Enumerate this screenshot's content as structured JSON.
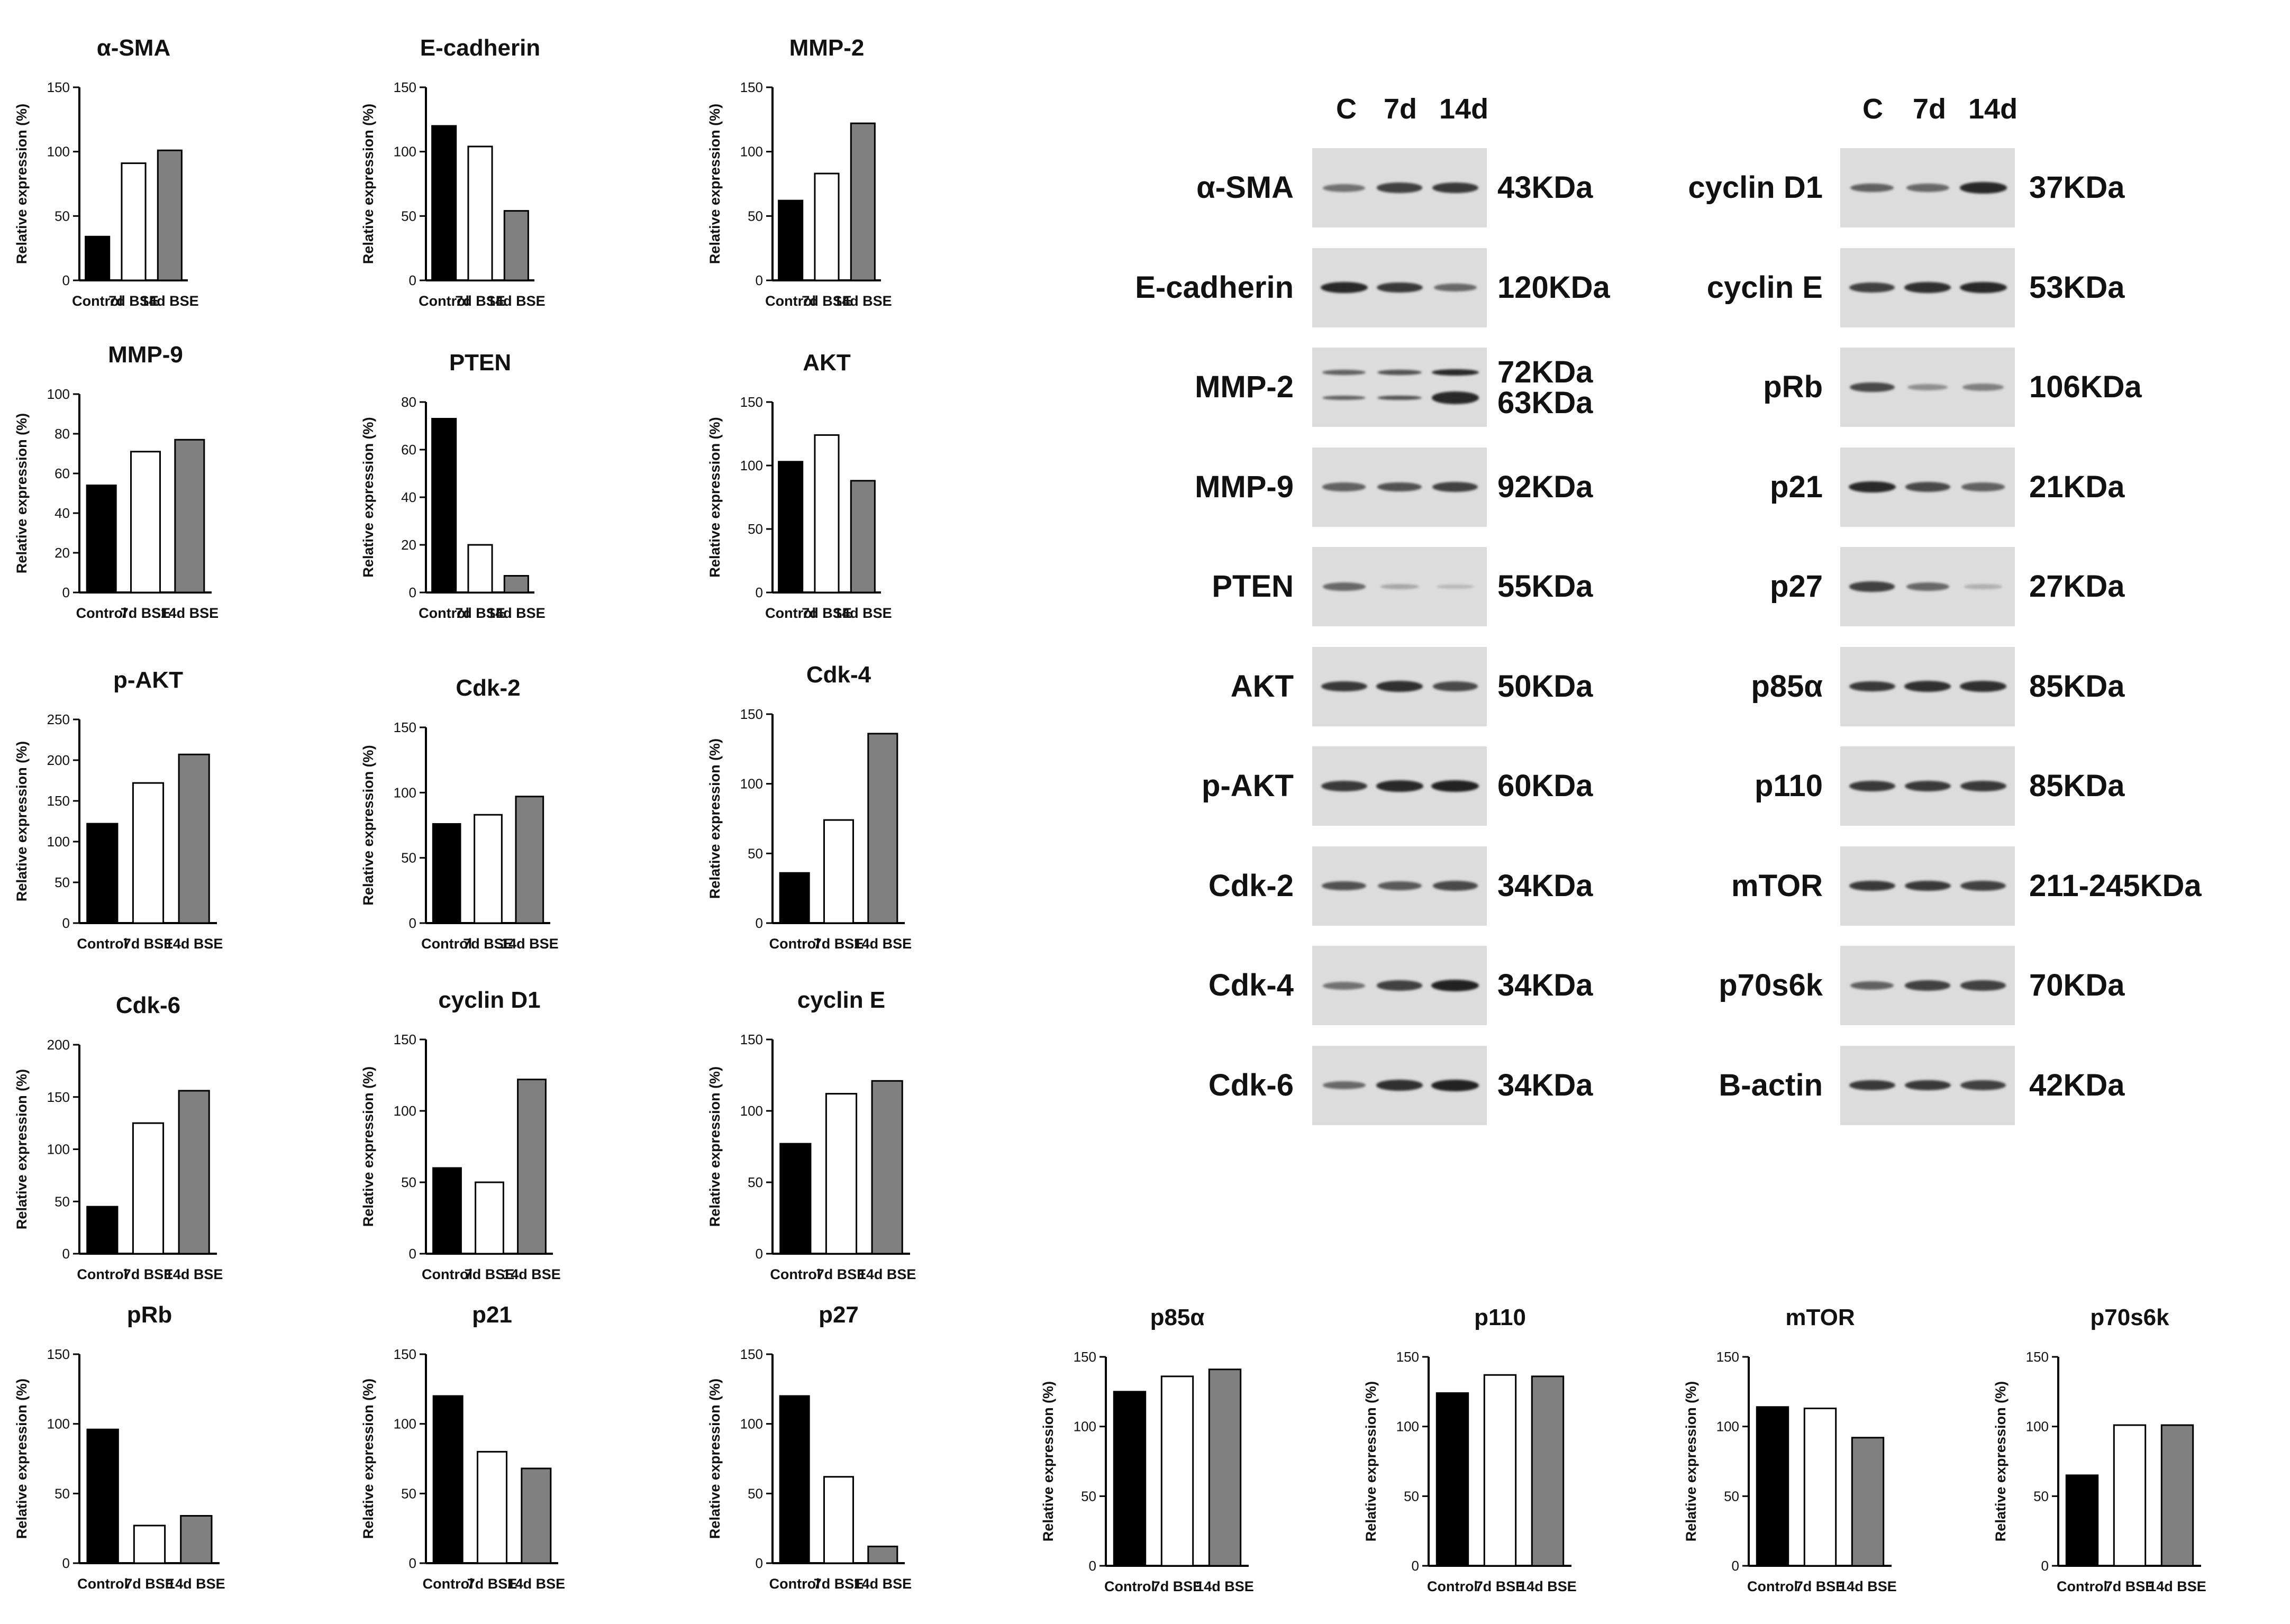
{
  "colors": {
    "control": "#000000",
    "d7": "#ffffff",
    "d14": "#808080",
    "axis": "#000000"
  },
  "common": {
    "ylabel": "Relative expression (%)",
    "categories": [
      "Control",
      "7d BSE",
      "14d BSE"
    ]
  },
  "chart_data": [
    {
      "type": "bar",
      "title": "α-SMA",
      "categories": [
        "Control",
        "7d BSE",
        "14d BSE"
      ],
      "values": [
        34,
        91,
        101
      ],
      "ylabel": "Relative expression (%)",
      "ylim": [
        0,
        150
      ],
      "ticks": [
        "0",
        "50",
        "100",
        "150"
      ]
    },
    {
      "type": "bar",
      "title": "E-cadherin",
      "categories": [
        "Control",
        "7d BSE",
        "14d BSE"
      ],
      "values": [
        120,
        104,
        54
      ],
      "ylabel": "Relative expression (%)",
      "ylim": [
        0,
        150
      ],
      "ticks": [
        "0",
        "50",
        "100",
        "150"
      ]
    },
    {
      "type": "bar",
      "title": "MMP-2",
      "categories": [
        "Control",
        "7d BSE",
        "14d BSE"
      ],
      "values": [
        62,
        83,
        122
      ],
      "ylabel": "Relative expression (%)",
      "ylim": [
        0,
        150
      ],
      "ticks": [
        "0",
        "50",
        "100",
        "150"
      ]
    },
    {
      "type": "bar",
      "title": "MMP-9",
      "categories": [
        "Control",
        "7d BSE",
        "14d BSE"
      ],
      "values": [
        54,
        71,
        77
      ],
      "ylabel": "Relative expression (%)",
      "ylim": [
        0,
        100
      ],
      "ticks": [
        "0",
        "20",
        "40",
        "60",
        "80",
        "100"
      ]
    },
    {
      "type": "bar",
      "title": "PTEN",
      "categories": [
        "Control",
        "7d BSE",
        "14d BSE"
      ],
      "values": [
        73,
        20,
        7
      ],
      "ylabel": "Relative expression (%)",
      "ylim": [
        0,
        80
      ],
      "ticks": [
        "0",
        "20",
        "40",
        "60",
        "80"
      ]
    },
    {
      "type": "bar",
      "title": "AKT",
      "categories": [
        "Control",
        "7d BSE",
        "14d BSE"
      ],
      "values": [
        103,
        124,
        88
      ],
      "ylabel": "Relative expression (%)",
      "ylim": [
        0,
        150
      ],
      "ticks": [
        "0",
        "50",
        "100",
        "150"
      ]
    },
    {
      "type": "bar",
      "title": "p-AKT",
      "categories": [
        "Control",
        "7d BSE",
        "14d BSE"
      ],
      "values": [
        122,
        172,
        207
      ],
      "ylabel": "Relative expression (%)",
      "ylim": [
        0,
        250
      ],
      "ticks": [
        "0",
        "50",
        "100",
        "150",
        "200",
        "250"
      ]
    },
    {
      "type": "bar",
      "title": "Cdk-2",
      "categories": [
        "Control",
        "7d BSE",
        "14d BSE"
      ],
      "values": [
        76,
        83,
        97
      ],
      "ylabel": "Relative expression (%)",
      "ylim": [
        0,
        150
      ],
      "ticks": [
        "0",
        "50",
        "100",
        "150"
      ]
    },
    {
      "type": "bar",
      "title": "Cdk-4",
      "categories": [
        "Control",
        "7d BSE",
        "14d BSE"
      ],
      "values": [
        36,
        74,
        136
      ],
      "ylabel": "Relative expression (%)",
      "ylim": [
        0,
        150
      ],
      "ticks": [
        "0",
        "50",
        "100",
        "150"
      ]
    },
    {
      "type": "bar",
      "title": "Cdk-6",
      "categories": [
        "Control",
        "7d BSE",
        "14d BSE"
      ],
      "values": [
        45,
        125,
        156
      ],
      "ylabel": "Relative expression (%)",
      "ylim": [
        0,
        200
      ],
      "ticks": [
        "0",
        "50",
        "100",
        "150",
        "200"
      ]
    },
    {
      "type": "bar",
      "title": "cyclin D1",
      "categories": [
        "Control",
        "7d BSE",
        "14d BSE"
      ],
      "values": [
        60,
        50,
        122
      ],
      "ylabel": "Relative expression (%)",
      "ylim": [
        0,
        150
      ],
      "ticks": [
        "0",
        "50",
        "100",
        "150"
      ]
    },
    {
      "type": "bar",
      "title": "cyclin E",
      "categories": [
        "Control",
        "7d BSE",
        "14d BSE"
      ],
      "values": [
        77,
        112,
        121
      ],
      "ylabel": "Relative expression (%)",
      "ylim": [
        0,
        150
      ],
      "ticks": [
        "0",
        "50",
        "100",
        "150"
      ]
    },
    {
      "type": "bar",
      "title": "pRb",
      "categories": [
        "Control",
        "7d BSE",
        "14d BSE"
      ],
      "values": [
        96,
        27,
        34
      ],
      "ylabel": "Relative expression (%)",
      "ylim": [
        0,
        150
      ],
      "ticks": [
        "0",
        "50",
        "100",
        "150"
      ]
    },
    {
      "type": "bar",
      "title": "p21",
      "categories": [
        "Control",
        "7d BSE",
        "14d BSE"
      ],
      "values": [
        120,
        80,
        68
      ],
      "ylabel": "Relative expression (%)",
      "ylim": [
        0,
        150
      ],
      "ticks": [
        "0",
        "50",
        "100",
        "150"
      ]
    },
    {
      "type": "bar",
      "title": "p27",
      "categories": [
        "Control",
        "7d BSE",
        "14d BSE"
      ],
      "values": [
        120,
        62,
        12
      ],
      "ylabel": "Relative expression (%)",
      "ylim": [
        0,
        150
      ],
      "ticks": [
        "0",
        "50",
        "100",
        "150"
      ]
    },
    {
      "type": "bar",
      "title": "p85α",
      "categories": [
        "Control",
        "7d BSE",
        "14d BSE"
      ],
      "values": [
        125,
        136,
        141
      ],
      "ylabel": "Relative expression (%)",
      "ylim": [
        0,
        150
      ],
      "ticks": [
        "0",
        "50",
        "100",
        "150"
      ]
    },
    {
      "type": "bar",
      "title": "p110",
      "categories": [
        "Control",
        "7d BSE",
        "14d BSE"
      ],
      "values": [
        124,
        137,
        136
      ],
      "ylabel": "Relative expression (%)",
      "ylim": [
        0,
        150
      ],
      "ticks": [
        "0",
        "50",
        "100",
        "150"
      ]
    },
    {
      "type": "bar",
      "title": "mTOR",
      "categories": [
        "Control",
        "7d BSE",
        "14d BSE"
      ],
      "values": [
        114,
        113,
        92
      ],
      "ylabel": "Relative expression (%)",
      "ylim": [
        0,
        150
      ],
      "ticks": [
        "0",
        "50",
        "100",
        "150"
      ]
    },
    {
      "type": "bar",
      "title": "p70s6k",
      "categories": [
        "Control",
        "7d BSE",
        "14d BSE"
      ],
      "values": [
        65,
        101,
        101
      ],
      "ylabel": "Relative expression (%)",
      "ylim": [
        0,
        150
      ],
      "ticks": [
        "0",
        "50",
        "100",
        "150"
      ]
    }
  ],
  "blots": {
    "lanes": [
      "C",
      "7d",
      "14d"
    ],
    "left": [
      {
        "label": "α-SMA",
        "mw": [
          "43KDa"
        ],
        "intensity": [
          0.5,
          0.8,
          0.85
        ]
      },
      {
        "label": "E-cadherin",
        "mw": [
          "120KDa"
        ],
        "intensity": [
          0.95,
          0.85,
          0.55
        ]
      },
      {
        "label": "MMP-2",
        "mw": [
          "72KDa",
          "63KDa"
        ],
        "intensity": [
          0.6,
          0.7,
          0.95
        ]
      },
      {
        "label": "MMP-9",
        "mw": [
          "92KDa"
        ],
        "intensity": [
          0.6,
          0.7,
          0.8
        ]
      },
      {
        "label": "PTEN",
        "mw": [
          "55KDa"
        ],
        "intensity": [
          0.55,
          0.15,
          0.05
        ]
      },
      {
        "label": "AKT",
        "mw": [
          "50KDa"
        ],
        "intensity": [
          0.85,
          0.9,
          0.75
        ]
      },
      {
        "label": "p-AKT",
        "mw": [
          "60KDa"
        ],
        "intensity": [
          0.85,
          0.95,
          1.0
        ]
      },
      {
        "label": "Cdk-2",
        "mw": [
          "34KDa"
        ],
        "intensity": [
          0.7,
          0.65,
          0.75
        ]
      },
      {
        "label": "Cdk-4",
        "mw": [
          "34KDa"
        ],
        "intensity": [
          0.5,
          0.8,
          1.0
        ]
      },
      {
        "label": "Cdk-6",
        "mw": [
          "34KDa"
        ],
        "intensity": [
          0.55,
          0.9,
          1.0
        ]
      }
    ],
    "right": [
      {
        "label": "cyclin D1",
        "mw": [
          "37KDa"
        ],
        "intensity": [
          0.6,
          0.55,
          0.95
        ]
      },
      {
        "label": "cyclin E",
        "mw": [
          "53KDa"
        ],
        "intensity": [
          0.8,
          0.9,
          0.95
        ]
      },
      {
        "label": "pRb",
        "mw": [
          "106KDa"
        ],
        "intensity": [
          0.75,
          0.3,
          0.4
        ]
      },
      {
        "label": "p21",
        "mw": [
          "21KDa"
        ],
        "intensity": [
          0.95,
          0.75,
          0.6
        ]
      },
      {
        "label": "p27",
        "mw": [
          "27KDa"
        ],
        "intensity": [
          0.8,
          0.55,
          0.1
        ]
      },
      {
        "label": "p85α",
        "mw": [
          "85KDa"
        ],
        "intensity": [
          0.85,
          0.9,
          0.9
        ]
      },
      {
        "label": "p110",
        "mw": [
          "85KDa"
        ],
        "intensity": [
          0.85,
          0.85,
          0.85
        ]
      },
      {
        "label": "mTOR",
        "mw": [
          "211-245KDa"
        ],
        "intensity": [
          0.85,
          0.85,
          0.8
        ]
      },
      {
        "label": "p70s6k",
        "mw": [
          "70KDa"
        ],
        "intensity": [
          0.6,
          0.8,
          0.8
        ]
      },
      {
        "label": "B-actin",
        "mw": [
          "42KDa"
        ],
        "intensity": [
          0.85,
          0.85,
          0.8
        ]
      }
    ]
  }
}
